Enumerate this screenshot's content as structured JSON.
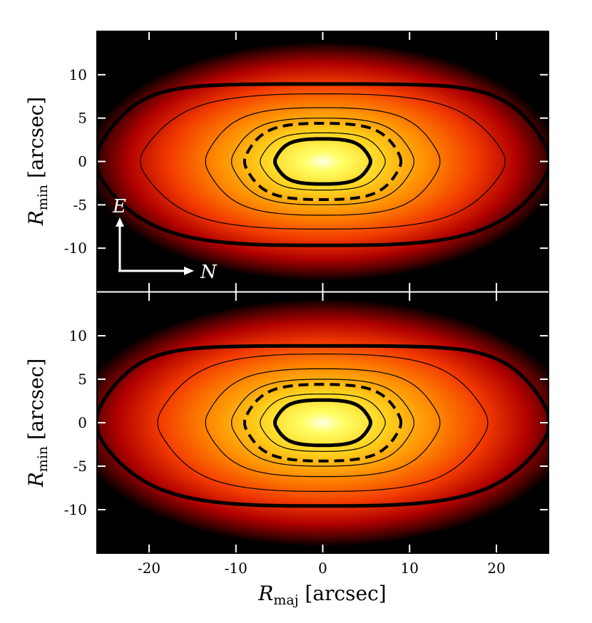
{
  "chart_data": [
    {
      "type": "heatmap",
      "panel": "top",
      "description_key": "observed",
      "xlim": [
        -26,
        26
      ],
      "ylim": [
        -15,
        15
      ],
      "xticks": [
        -20,
        -10,
        0,
        10,
        20
      ],
      "yticks": [
        10,
        5,
        0,
        -5,
        -10
      ],
      "ytick_labels": [
        "10",
        "5",
        "0",
        "-5",
        "-10"
      ],
      "ylabel": {
        "sym": "R",
        "sub": "min",
        "unit": "[arcsec]"
      },
      "compass": {
        "east": "E",
        "north": "N"
      },
      "contours": [
        {
          "style": "thick",
          "semi_major": 26,
          "semi_minor": 9.3
        },
        {
          "style": "thin",
          "semi_major": 21,
          "semi_minor": 7.8
        },
        {
          "style": "thin",
          "semi_major": 13.5,
          "semi_minor": 6.2
        },
        {
          "style": "thin",
          "semi_major": 10.5,
          "semi_minor": 5.0
        },
        {
          "style": "dashed",
          "semi_major": 9.0,
          "semi_minor": 4.4
        },
        {
          "style": "thin",
          "semi_major": 7.2,
          "semi_minor": 3.3
        },
        {
          "style": "thick",
          "semi_major": 5.5,
          "semi_minor": 2.6
        }
      ]
    },
    {
      "type": "heatmap",
      "panel": "bottom",
      "description_key": "model",
      "xlim": [
        -26,
        26
      ],
      "ylim": [
        -15,
        15
      ],
      "xticks": [
        -20,
        -10,
        0,
        10,
        20
      ],
      "xtick_labels": [
        "-20",
        "-10",
        "0",
        "10",
        "20"
      ],
      "yticks": [
        10,
        5,
        0,
        -5,
        -10
      ],
      "ytick_labels": [
        "10",
        "5",
        "0",
        "-5",
        "-10"
      ],
      "xlabel": {
        "sym": "R",
        "sub": "maj",
        "unit": "[arcsec]"
      },
      "ylabel": {
        "sym": "R",
        "sub": "min",
        "unit": "[arcsec]"
      },
      "contours": [
        {
          "style": "thick",
          "semi_major": 26,
          "semi_minor": 9.2
        },
        {
          "style": "thin",
          "semi_major": 19,
          "semi_minor": 7.9
        },
        {
          "style": "thin",
          "semi_major": 13.5,
          "semi_minor": 6.2
        },
        {
          "style": "thin",
          "semi_major": 10.5,
          "semi_minor": 5.0
        },
        {
          "style": "dashed",
          "semi_major": 9.0,
          "semi_minor": 4.4
        },
        {
          "style": "thin",
          "semi_major": 7.2,
          "semi_minor": 3.3
        },
        {
          "style": "thick",
          "semi_major": 5.5,
          "semi_minor": 2.6
        }
      ]
    }
  ]
}
